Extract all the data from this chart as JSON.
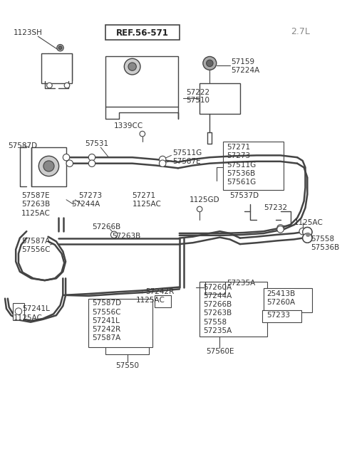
{
  "bg_color": "#ffffff",
  "lc": "#444444",
  "tc": "#333333",
  "figsize": [
    4.8,
    6.55
  ],
  "dpi": 100,
  "xlim": [
    0,
    480
  ],
  "ylim": [
    0,
    655
  ]
}
